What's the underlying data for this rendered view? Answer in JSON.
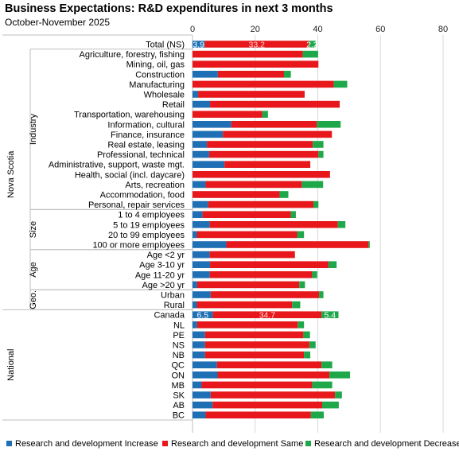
{
  "chart_data": {
    "type": "bar",
    "stacked": true,
    "orientation": "horizontal",
    "title": "Business Expectations: R&D expenditures in next 3 months",
    "subtitle": "October-November 2025",
    "xlim": [
      0,
      80
    ],
    "x_ticks": [
      "0",
      "20",
      "40",
      "60",
      "80"
    ],
    "grid": true,
    "legend_position": "bottom",
    "series_colors": [
      "#1f6fb5",
      "#e8171b",
      "#1fa84a"
    ],
    "series": [
      {
        "name": "Research and development Increase",
        "values": [
          3.9,
          0,
          0,
          8.1,
          0,
          1.8,
          5.6,
          0,
          12.4,
          9.7,
          4.6,
          5.3,
          10.2,
          0,
          4.2,
          0,
          5.0,
          3.2,
          5.5,
          1.4,
          10.8,
          5.5,
          5.6,
          5.5,
          1.5,
          5.8,
          1.4,
          6.5,
          1.5,
          4.0,
          4.0,
          4.0,
          7.8,
          8.0,
          2.9,
          5.8,
          6.4,
          4.2
        ]
      },
      {
        "name": "Research and development Same",
        "values": [
          33.2,
          35.2,
          40.2,
          21.1,
          45.1,
          34.0,
          41.4,
          22.3,
          27.3,
          34.8,
          33.8,
          34.9,
          27.4,
          43.9,
          30.7,
          27.8,
          33.6,
          28.2,
          40.9,
          32.0,
          45.4,
          27.2,
          37.8,
          32.7,
          32.6,
          34.6,
          30.4,
          34.7,
          32.1,
          31.4,
          33.3,
          31.6,
          33.4,
          35.7,
          35.3,
          39.7,
          35.0,
          33.6
        ]
      },
      {
        "name": "Research and development Decrease",
        "values": [
          2.2,
          4.9,
          0,
          2.2,
          4.3,
          0,
          0,
          1.8,
          7.6,
          0,
          3.4,
          1.6,
          0,
          0,
          6.8,
          2.8,
          1.6,
          1.6,
          2.4,
          2.2,
          0.4,
          0,
          2.6,
          1.6,
          1.8,
          1.4,
          2.6,
          5.4,
          2.0,
          2.1,
          2.0,
          2.0,
          3.4,
          6.6,
          6.4,
          2.2,
          5.3,
          4.1
        ]
      }
    ],
    "categories": [
      "Total (NS)",
      "Agriculture, forestry, fishing",
      "Mining, oil, gas",
      "Construction",
      "Manufacturing",
      "Wholesale",
      "Retail",
      "Transportation, warehousing",
      "Information, cultural",
      "Finance, insurance",
      "Real estate, leasing",
      "Professional, technical",
      "Administrative, support, waste mgt.",
      "Health, social (incl. daycare)",
      "Arts, recreation",
      "Accommodation, food",
      "Personal, repair services",
      "1 to 4 employees",
      "5 to 19 employees",
      "20 to 99 employees",
      "100 or more employees",
      "Age <2 yr",
      "Age 3-10 yr",
      "Age 11-20 yr",
      "Age >20 yr",
      "Urban",
      "Rural",
      "Canada",
      "NL",
      "PE",
      "NS",
      "NB",
      "QC",
      "ON",
      "MB",
      "SK",
      "AB",
      "BC"
    ],
    "row_groups": [
      {
        "label": "Nova Scotia",
        "subgroups": [
          {
            "label": "Industry",
            "first": 1,
            "last": 16
          },
          {
            "label": "Size",
            "first": 17,
            "last": 20
          },
          {
            "label": "Age",
            "first": 21,
            "last": 24
          },
          {
            "label": "Geo.",
            "first": 25,
            "last": 26
          }
        ],
        "first": 0,
        "last": 26
      },
      {
        "label": "National",
        "first": 27,
        "last": 37
      }
    ],
    "data_labels": [
      {
        "row": 0,
        "labels": [
          "3.9",
          "33.2",
          "2.2"
        ]
      },
      {
        "row": 27,
        "labels": [
          "6.5",
          "34.7",
          "5.4"
        ]
      }
    ]
  }
}
